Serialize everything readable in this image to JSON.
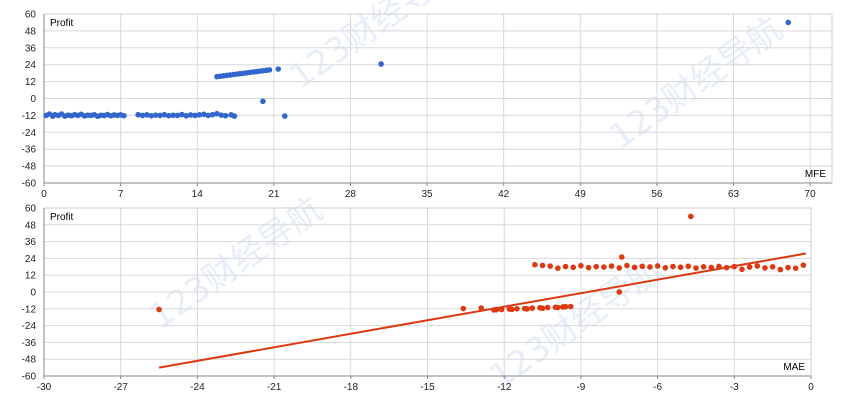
{
  "chart_data": [
    {
      "type": "scatter",
      "ylabel": "Profit",
      "xlabel": "MFE",
      "xlim": [
        0,
        72
      ],
      "ylim": [
        -60,
        60
      ],
      "xticks": [
        0,
        7,
        14,
        21,
        28,
        35,
        42,
        49,
        56,
        63,
        70
      ],
      "yticks": [
        -60,
        -48,
        -36,
        -24,
        -12,
        0,
        12,
        24,
        36,
        48,
        60
      ],
      "grid": true,
      "color": "#3366cc",
      "series": [
        {
          "points": [
            [
              0.2,
              -12
            ],
            [
              0.5,
              -11
            ],
            [
              0.8,
              -12.5
            ],
            [
              1.0,
              -11.5
            ],
            [
              1.3,
              -12
            ],
            [
              1.6,
              -11
            ],
            [
              1.9,
              -12.5
            ],
            [
              2.2,
              -11.8
            ],
            [
              2.5,
              -12.2
            ],
            [
              2.8,
              -11.5
            ],
            [
              3.1,
              -12
            ],
            [
              3.4,
              -11.2
            ],
            [
              3.7,
              -12.4
            ],
            [
              4.0,
              -11.8
            ],
            [
              4.3,
              -12
            ],
            [
              4.6,
              -11.5
            ],
            [
              4.9,
              -12.6
            ],
            [
              5.2,
              -11.9
            ],
            [
              5.5,
              -12.1
            ],
            [
              5.8,
              -11.4
            ],
            [
              6.1,
              -12.3
            ],
            [
              6.4,
              -11.7
            ],
            [
              6.7,
              -12
            ],
            [
              7.0,
              -11.6
            ],
            [
              7.3,
              -12.2
            ],
            [
              8.6,
              -11.5
            ],
            [
              9.0,
              -12
            ],
            [
              9.4,
              -11.6
            ],
            [
              9.8,
              -12.3
            ],
            [
              10.2,
              -11.8
            ],
            [
              10.6,
              -12
            ],
            [
              11.0,
              -11.5
            ],
            [
              11.4,
              -12.2
            ],
            [
              11.8,
              -11.9
            ],
            [
              12.2,
              -12
            ],
            [
              12.6,
              -11.4
            ],
            [
              13.0,
              -12.3
            ],
            [
              13.4,
              -11.7
            ],
            [
              13.8,
              -12
            ],
            [
              14.2,
              -11.6
            ],
            [
              14.6,
              -11.2
            ],
            [
              15.0,
              -12
            ],
            [
              15.4,
              -11.5
            ],
            [
              15.8,
              -10.8
            ],
            [
              16.2,
              -11.8
            ],
            [
              16.6,
              -12.2
            ],
            [
              17.1,
              -11.6
            ],
            [
              17.4,
              -12.5
            ],
            [
              15.8,
              15.5
            ],
            [
              16.1,
              15.8
            ],
            [
              16.4,
              16.1
            ],
            [
              16.7,
              16.4
            ],
            [
              17.0,
              16.7
            ],
            [
              17.3,
              17.0
            ],
            [
              17.6,
              17.3
            ],
            [
              17.9,
              17.6
            ],
            [
              18.2,
              17.9
            ],
            [
              18.5,
              18.2
            ],
            [
              18.8,
              18.5
            ],
            [
              19.1,
              18.8
            ],
            [
              19.4,
              19.1
            ],
            [
              19.7,
              19.4
            ],
            [
              20.0,
              19.7
            ],
            [
              20.3,
              20.0
            ],
            [
              20.6,
              20.3
            ],
            [
              21.4,
              20.9
            ],
            [
              20.0,
              -2
            ],
            [
              22.0,
              -12.5
            ],
            [
              30.8,
              24.5
            ],
            [
              68.0,
              54.0
            ]
          ]
        }
      ]
    },
    {
      "type": "scatter",
      "ylabel": "Profit",
      "xlabel": "MAE",
      "xlim": [
        -30,
        0
      ],
      "ylim": [
        -60,
        60
      ],
      "xticks": [
        -30,
        -27,
        -24,
        -21,
        -18,
        -15,
        -12,
        -9,
        -6,
        -3,
        0
      ],
      "yticks": [
        -60,
        -48,
        -36,
        -24,
        -12,
        0,
        12,
        24,
        36,
        48,
        60
      ],
      "grid": true,
      "color": "#dc3912",
      "trendline": [
        [
          -25.5,
          -54
        ],
        [
          -0.2,
          27.5
        ]
      ],
      "series": [
        {
          "points": [
            [
              -25.5,
              -12.5
            ],
            [
              -13.6,
              -11.8
            ],
            [
              -12.9,
              -11.5
            ],
            [
              -12.4,
              -12.8
            ],
            [
              -12.1,
              -12.5
            ],
            [
              -11.8,
              -12.2
            ],
            [
              -11.5,
              -12
            ],
            [
              -11.2,
              -11.8
            ],
            [
              -10.9,
              -11.5
            ],
            [
              -10.6,
              -11.3
            ],
            [
              -10.3,
              -11.1
            ],
            [
              -10.0,
              -10.9
            ],
            [
              -9.7,
              -10.7
            ],
            [
              -9.4,
              -10.4
            ],
            [
              -12.3,
              -12.6
            ],
            [
              -11.7,
              -12.4
            ],
            [
              -11.1,
              -12.1
            ],
            [
              -10.5,
              -11.6
            ],
            [
              -9.9,
              -11.1
            ],
            [
              -9.6,
              -10.5
            ],
            [
              -10.8,
              19.5
            ],
            [
              -10.5,
              19
            ],
            [
              -10.2,
              18.5
            ],
            [
              -9.9,
              17
            ],
            [
              -9.6,
              18.2
            ],
            [
              -9.3,
              17.6
            ],
            [
              -9.0,
              18.8
            ],
            [
              -8.7,
              17.4
            ],
            [
              -8.4,
              18.1
            ],
            [
              -8.1,
              17.8
            ],
            [
              -7.8,
              18.5
            ],
            [
              -7.5,
              17.2
            ],
            [
              -7.2,
              18.9
            ],
            [
              -6.9,
              17.6
            ],
            [
              -6.6,
              18.3
            ],
            [
              -6.3,
              17.9
            ],
            [
              -6.0,
              18.6
            ],
            [
              -5.7,
              17.3
            ],
            [
              -5.4,
              18.2
            ],
            [
              -5.1,
              17.7
            ],
            [
              -4.8,
              18.4
            ],
            [
              -4.5,
              17.1
            ],
            [
              -4.2,
              18.0
            ],
            [
              -3.9,
              17.5
            ],
            [
              -3.6,
              18.3
            ],
            [
              -3.3,
              17.4
            ],
            [
              -3.0,
              18.1
            ],
            [
              -2.7,
              16.2
            ],
            [
              -2.4,
              17.8
            ],
            [
              -2.1,
              18.6
            ],
            [
              -1.8,
              17.2
            ],
            [
              -1.5,
              18.0
            ],
            [
              -1.2,
              16.0
            ],
            [
              -0.9,
              17.5
            ],
            [
              -0.6,
              17.0
            ],
            [
              -0.3,
              19.2
            ],
            [
              -7.4,
              25
            ],
            [
              -7.5,
              0
            ],
            [
              -4.7,
              54
            ]
          ]
        }
      ]
    }
  ]
}
